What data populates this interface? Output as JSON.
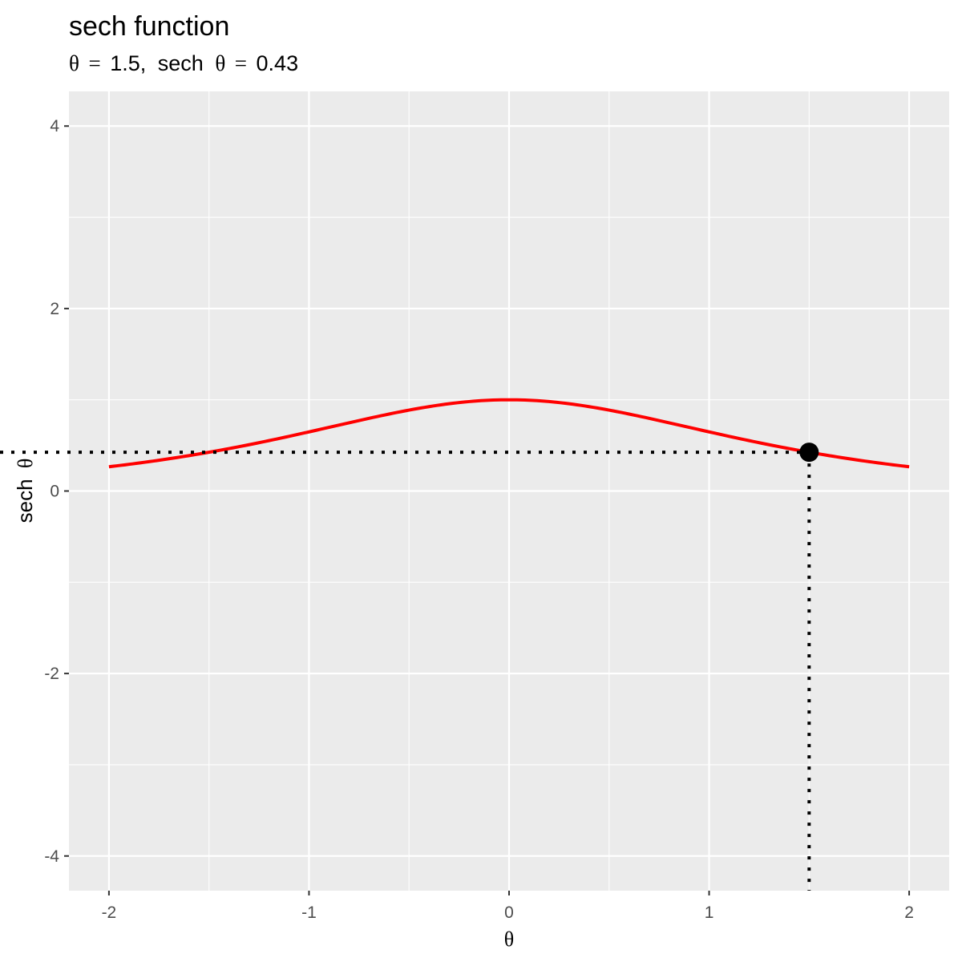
{
  "chart_data": {
    "type": "line",
    "title": "sech function",
    "subtitle": {
      "sym": "θ",
      "eq": "=",
      "theta_value": "1.5,",
      "label": "sech",
      "sech_value": "0.43"
    },
    "xlabel": "θ",
    "ylabel": {
      "text": "sech",
      "sym": "θ"
    },
    "xlim": [
      -2.2,
      2.2
    ],
    "ylim": [
      -4.38,
      4.38
    ],
    "x_ticks": [
      -2,
      -1,
      0,
      1,
      2
    ],
    "x_tick_labels": [
      "-2",
      "-1",
      "0",
      "1",
      "2"
    ],
    "y_ticks": [
      -4,
      -2,
      0,
      2,
      4
    ],
    "y_tick_labels": [
      "-4",
      "-2",
      "0",
      "2",
      "4"
    ],
    "x_minor": [
      -1.5,
      -0.5,
      0.5,
      1.5
    ],
    "y_minor": [
      -3,
      -1,
      1,
      3
    ],
    "grid": true,
    "series": [
      {
        "function": "sech",
        "x_range": [
          -2,
          2
        ],
        "x": [
          -2,
          -1.75,
          -1.5,
          -1.25,
          -1,
          -0.75,
          -0.5,
          -0.25,
          0,
          0.25,
          0.5,
          0.75,
          1,
          1.25,
          1.5,
          1.75,
          2
        ],
        "y": [
          0.266,
          0.339,
          0.425,
          0.528,
          0.648,
          0.772,
          0.887,
          0.97,
          1.0,
          0.97,
          0.887,
          0.772,
          0.648,
          0.528,
          0.425,
          0.339,
          0.266
        ],
        "color": "#ff0000"
      }
    ],
    "highlight_point": {
      "x": 1.5,
      "y": 0.425,
      "color": "#000000"
    },
    "colors": {
      "panel_bg": "#ebebeb",
      "grid": "#ffffff",
      "curve": "#ff0000",
      "marker": "#000000",
      "tick_text": "#4d4d4d",
      "tick_mark": "#333333"
    }
  }
}
